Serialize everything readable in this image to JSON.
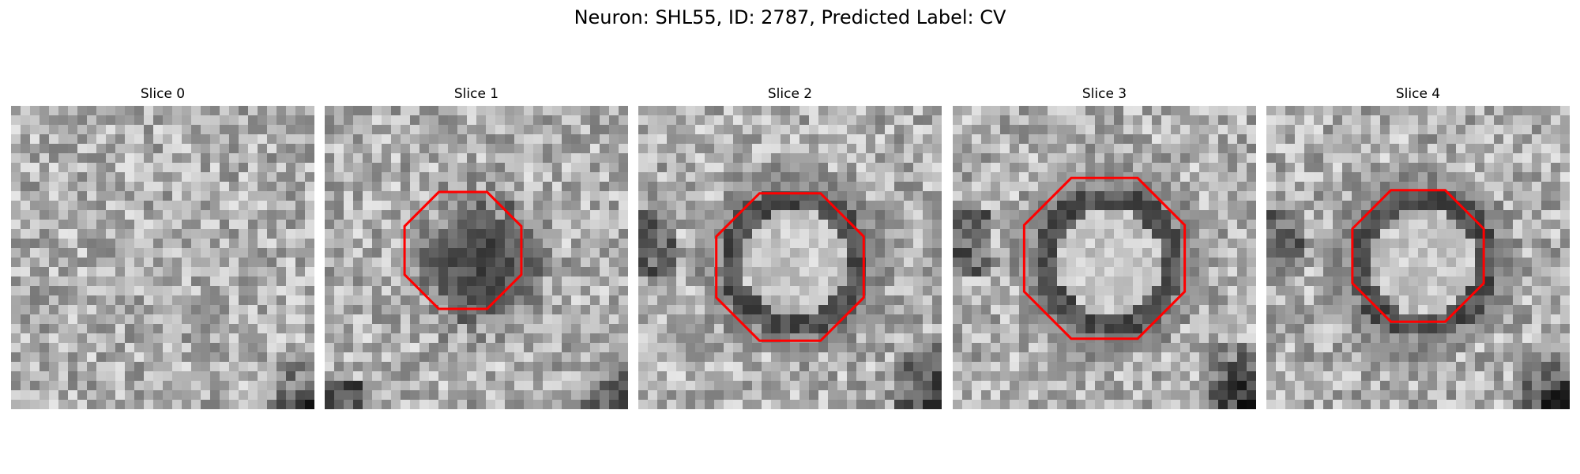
{
  "figure": {
    "title": "Neuron: SHL55, ID: 2787, Predicted Label: CV",
    "panels": [
      {
        "title": "Slice 0",
        "ring": "none",
        "contour": "none"
      },
      {
        "title": "Slice 1",
        "ring": "dark",
        "contour": "octagon"
      },
      {
        "title": "Slice 2",
        "ring": "bright",
        "contour": "octagon"
      },
      {
        "title": "Slice 3",
        "ring": "bright",
        "contour": "octagon"
      },
      {
        "title": "Slice 4",
        "ring": "bright",
        "contour": "octagon"
      }
    ],
    "colors": {
      "background": "#ffffff",
      "contour": "#ff0000"
    }
  }
}
